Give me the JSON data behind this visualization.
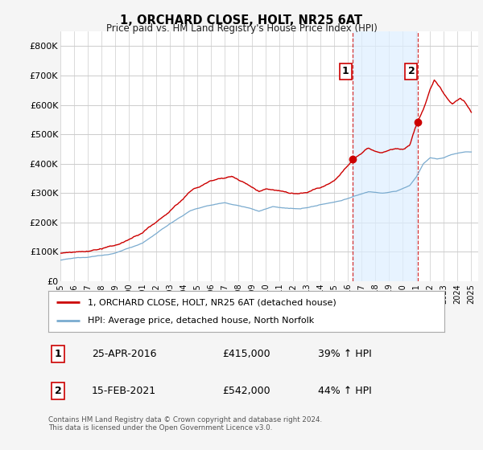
{
  "title": "1, ORCHARD CLOSE, HOLT, NR25 6AT",
  "subtitle": "Price paid vs. HM Land Registry's House Price Index (HPI)",
  "xlim_start": 1995.0,
  "xlim_end": 2025.5,
  "ylim_min": 0,
  "ylim_max": 850000,
  "yticks": [
    0,
    100000,
    200000,
    300000,
    400000,
    500000,
    600000,
    700000,
    800000
  ],
  "ytick_labels": [
    "£0",
    "£100K",
    "£200K",
    "£300K",
    "£400K",
    "£500K",
    "£600K",
    "£700K",
    "£800K"
  ],
  "background_color": "#f5f5f5",
  "plot_bg_color": "#ffffff",
  "grid_color": "#cccccc",
  "legend_entry1": "1, ORCHARD CLOSE, HOLT, NR25 6AT (detached house)",
  "legend_entry2": "HPI: Average price, detached house, North Norfolk",
  "red_line_color": "#cc0000",
  "blue_line_color": "#7aabcf",
  "shade_color": "#ddeeff",
  "marker1_date": 2016.32,
  "marker1_value": 415000,
  "marker1_label": "1",
  "marker1_text": "25-APR-2016",
  "marker1_price": "£415,000",
  "marker1_hpi": "39% ↑ HPI",
  "marker2_date": 2021.12,
  "marker2_value": 542000,
  "marker2_label": "2",
  "marker2_text": "15-FEB-2021",
  "marker2_price": "£542,000",
  "marker2_hpi": "44% ↑ HPI",
  "footer": "Contains HM Land Registry data © Crown copyright and database right 2024.\nThis data is licensed under the Open Government Licence v3.0.",
  "xtick_years": [
    1995,
    1996,
    1997,
    1998,
    1999,
    2000,
    2001,
    2002,
    2003,
    2004,
    2005,
    2006,
    2007,
    2008,
    2009,
    2010,
    2011,
    2012,
    2013,
    2014,
    2015,
    2016,
    2017,
    2018,
    2019,
    2020,
    2021,
    2022,
    2023,
    2024,
    2025
  ]
}
